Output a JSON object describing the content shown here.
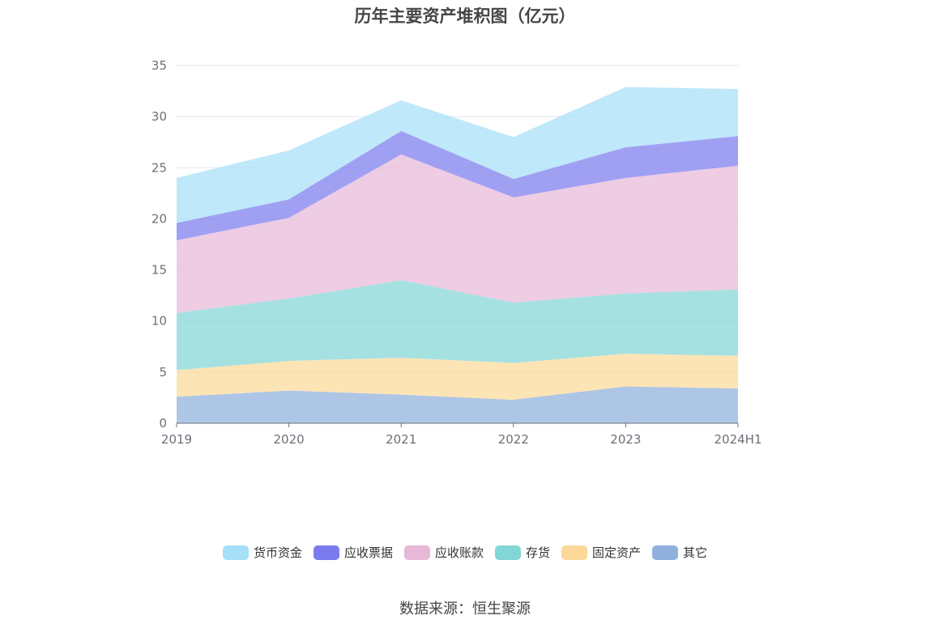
{
  "chart_data": {
    "type": "area",
    "stacked": true,
    "title": "历年主要资产堆积图（亿元）",
    "categories": [
      "2019",
      "2020",
      "2021",
      "2022",
      "2023",
      "2024H1"
    ],
    "ylim": [
      0,
      35
    ],
    "yticks": [
      "0",
      "5",
      "10",
      "15",
      "20",
      "25",
      "30",
      "35"
    ],
    "grid": true,
    "legend_position": "bottom",
    "series": [
      {
        "name": "其它",
        "color": "#8fb0dc",
        "values": [
          2.6,
          3.2,
          2.8,
          2.3,
          3.6,
          3.4
        ]
      },
      {
        "name": "固定资产",
        "color": "#fcd999",
        "values": [
          2.6,
          2.9,
          3.6,
          3.6,
          3.2,
          3.2
        ]
      },
      {
        "name": "存货",
        "color": "#83d6d6",
        "values": [
          5.6,
          6.1,
          7.6,
          5.9,
          5.9,
          6.5
        ]
      },
      {
        "name": "应收账款",
        "color": "#e8b8d8",
        "values": [
          7.1,
          7.9,
          12.3,
          10.3,
          11.3,
          12.1
        ]
      },
      {
        "name": "应收票据",
        "color": "#7b7bef",
        "values": [
          1.7,
          1.8,
          2.3,
          1.8,
          3.0,
          2.9
        ]
      },
      {
        "name": "货币资金",
        "color": "#a6dff8",
        "values": [
          4.4,
          4.8,
          3.0,
          4.1,
          5.9,
          4.6
        ]
      }
    ]
  },
  "legend": [
    {
      "label": "货币资金",
      "color": "#a6dff8"
    },
    {
      "label": "应收票据",
      "color": "#7b7bef"
    },
    {
      "label": "应收账款",
      "color": "#e8b8d8"
    },
    {
      "label": "存货",
      "color": "#83d6d6"
    },
    {
      "label": "固定资产",
      "color": "#fcd999"
    },
    {
      "label": "其它",
      "color": "#8fb0dc"
    }
  ],
  "source": "数据来源：恒生聚源"
}
